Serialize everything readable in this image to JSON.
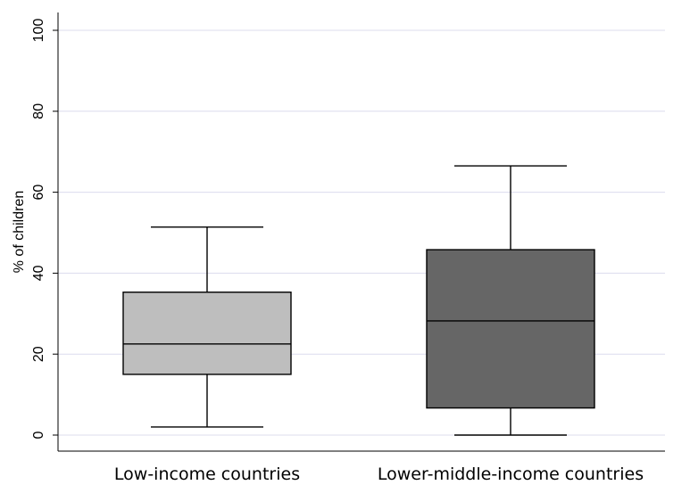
{
  "chart_data": {
    "type": "box",
    "ylabel": "% of children",
    "ylim": [
      0,
      100
    ],
    "yticks": [
      0,
      20,
      40,
      60,
      80,
      100
    ],
    "grid": true,
    "categories": [
      "Low-income countries",
      "Lower-middle-income countries"
    ],
    "boxes": [
      {
        "category": "Low-income countries",
        "min": 2,
        "q1": 15,
        "median": 22.5,
        "q3": 35.3,
        "max": 51.4,
        "color": "#bebebe"
      },
      {
        "category": "Lower-middle-income countries",
        "min": 0,
        "q1": 6.7,
        "median": 28.2,
        "q3": 45.8,
        "max": 66.5,
        "color": "#666666"
      }
    ]
  }
}
